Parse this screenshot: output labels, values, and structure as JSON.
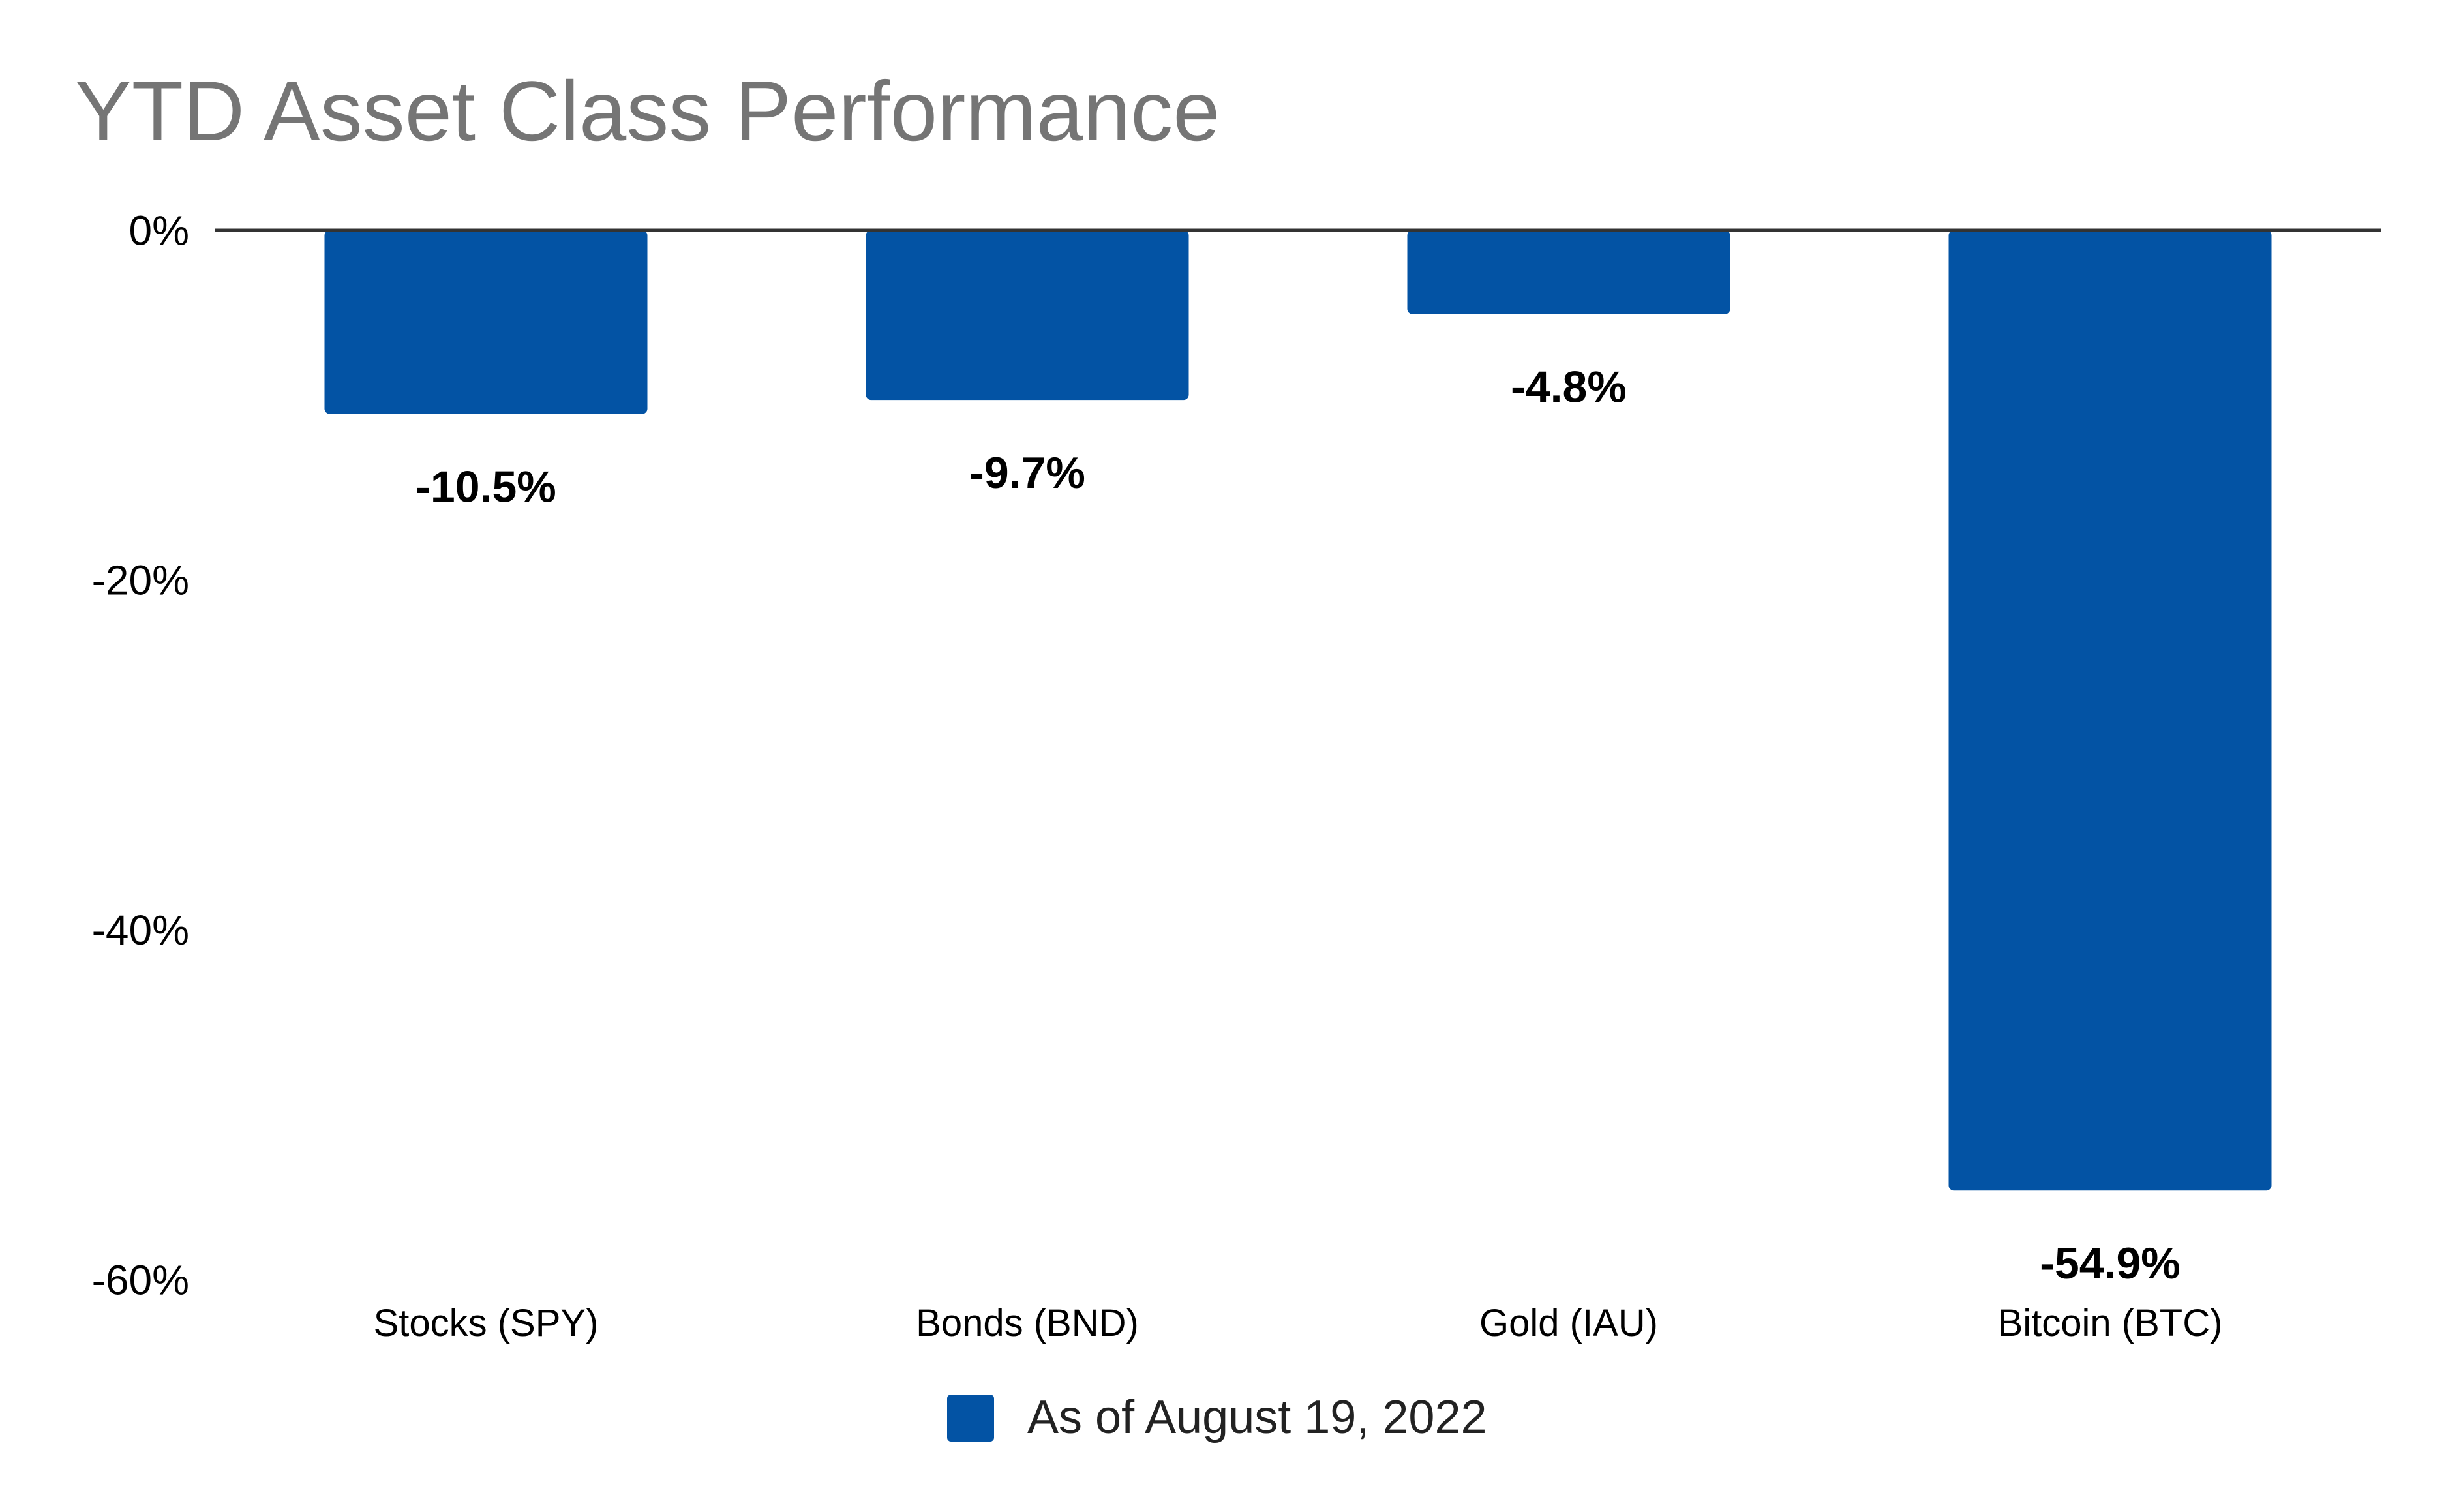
{
  "chart_data": {
    "type": "bar",
    "title": "YTD Asset Class Performance",
    "categories": [
      "Stocks (SPY)",
      "Bonds (BND)",
      "Gold (IAU)",
      "Bitcoin (BTC)"
    ],
    "series": [
      {
        "name": "As of August 19, 2022",
        "values": [
          -10.5,
          -9.7,
          -4.8,
          -54.9
        ],
        "data_labels": [
          "-10.5%",
          "-9.7%",
          "-4.8%",
          "-54.9%"
        ],
        "color": "#0353a4"
      }
    ],
    "y_ticks": [
      0,
      -20,
      -40,
      -60
    ],
    "y_tick_labels": [
      "0%",
      "-20%",
      "-40%",
      "-60%"
    ],
    "ylim": [
      -60,
      0
    ],
    "xlabel": "",
    "ylabel": "",
    "grid": false,
    "legend_position": "bottom",
    "colors": {
      "bar": "#0353a4",
      "title": "#757575",
      "zero_line": "#333333",
      "text": "#000000",
      "legend_text": "#222222"
    }
  }
}
